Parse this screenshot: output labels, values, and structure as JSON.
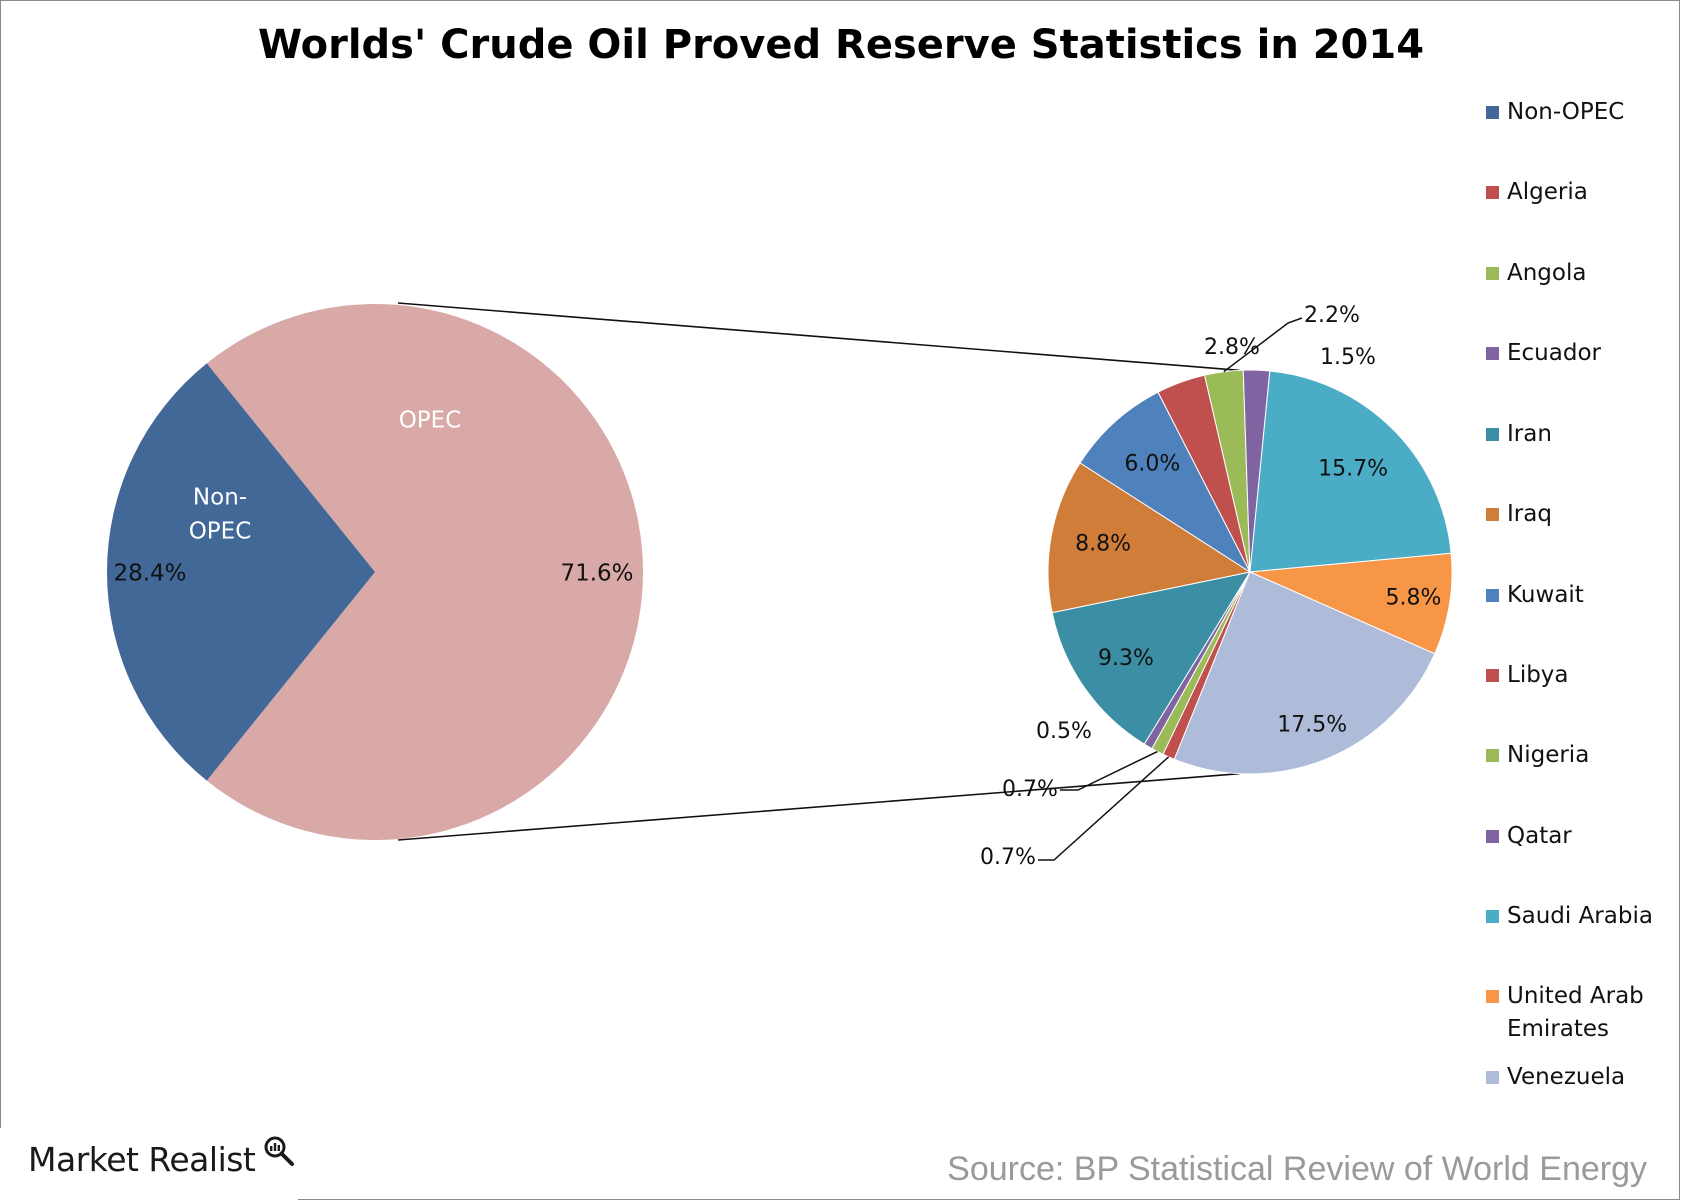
{
  "title": "Worlds' Crude Oil Proved Reserve Statistics in 2014",
  "source": "Source: BP Statistical Review of World Energy",
  "logo": "Market Realist",
  "colors": {
    "Non-OPEC": "#416897",
    "OPEC": "#d9a9a8",
    "Algeria": "#c0504d",
    "Angola": "#9bbb59",
    "Ecuador": "#8064a2",
    "Iran": "#3b8ea4",
    "Iraq": "#d07d3a",
    "Kuwait": "#4f81bd",
    "Libya": "#c0504d",
    "Nigeria": "#9bbb59",
    "Qatar": "#8064a2",
    "Saudi Arabia": "#4bacc6",
    "United Arab Emirates": "#f79646",
    "Venezuela": "#aebcd9"
  },
  "chart_data": [
    {
      "type": "pie",
      "series": [
        {
          "name": "Non-OPEC",
          "value": 28.4,
          "label": "28.4%",
          "category_label": "Non-\nOPEC"
        },
        {
          "name": "OPEC",
          "value": 71.6,
          "label": "71.6%",
          "category_label": "OPEC"
        }
      ]
    },
    {
      "type": "pie",
      "series": [
        {
          "name": "Algeria",
          "value": 0.7,
          "label": "0.7%"
        },
        {
          "name": "Angola",
          "value": 0.7,
          "label": "0.7%"
        },
        {
          "name": "Ecuador",
          "value": 0.5,
          "label": "0.5%"
        },
        {
          "name": "Iran",
          "value": 9.3,
          "label": "9.3%"
        },
        {
          "name": "Iraq",
          "value": 8.8,
          "label": "8.8%"
        },
        {
          "name": "Kuwait",
          "value": 6.0,
          "label": "6.0%"
        },
        {
          "name": "Libya",
          "value": 2.8,
          "label": "2.8%"
        },
        {
          "name": "Nigeria",
          "value": 2.2,
          "label": "2.2%"
        },
        {
          "name": "Qatar",
          "value": 1.5,
          "label": "1.5%"
        },
        {
          "name": "Saudi Arabia",
          "value": 15.7,
          "label": "15.7%"
        },
        {
          "name": "United Arab Emirates",
          "value": 5.8,
          "label": "5.8%"
        },
        {
          "name": "Venezuela",
          "value": 17.5,
          "label": "17.5%"
        }
      ]
    }
  ],
  "legend": {
    "placement": "right",
    "entries": [
      "Non-OPEC",
      "Algeria",
      "Angola",
      "Ecuador",
      "Iran",
      "Iraq",
      "Kuwait",
      "Libya",
      "Nigeria",
      "Qatar",
      "Saudi Arabia",
      "United Arab Emirates",
      "Venezuela"
    ]
  }
}
